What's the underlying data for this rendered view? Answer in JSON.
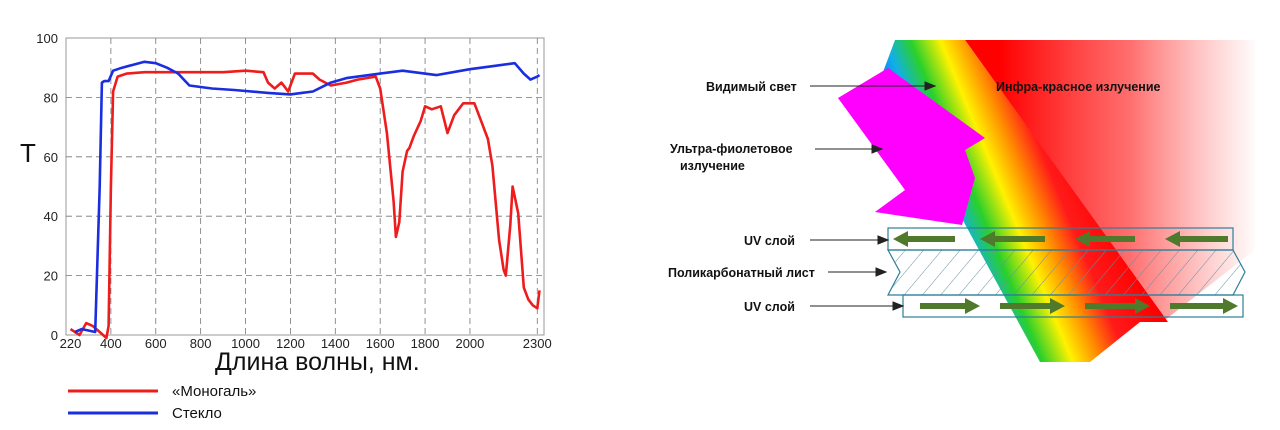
{
  "chart_data": {
    "type": "line",
    "ylabel": "T",
    "xlabel": "Длина волны, нм.",
    "xlim": [
      200,
      2330
    ],
    "ylim": [
      0,
      100
    ],
    "x_ticks": [
      220,
      400,
      600,
      800,
      1000,
      1200,
      1400,
      1600,
      1800,
      2000,
      2300
    ],
    "y_ticks": [
      0,
      20,
      40,
      60,
      80,
      100
    ],
    "grid": true,
    "legend_placement": "bottom-left",
    "series": [
      {
        "name": "«Моногаль»",
        "color": "#ee1c1c",
        "points": [
          [
            220,
            2
          ],
          [
            260,
            0
          ],
          [
            290,
            4
          ],
          [
            320,
            3
          ],
          [
            350,
            1
          ],
          [
            380,
            -1
          ],
          [
            390,
            3
          ],
          [
            400,
            50
          ],
          [
            410,
            82
          ],
          [
            430,
            87
          ],
          [
            470,
            88
          ],
          [
            550,
            88.5
          ],
          [
            700,
            88.5
          ],
          [
            900,
            88.5
          ],
          [
            1000,
            89
          ],
          [
            1080,
            88.5
          ],
          [
            1100,
            85
          ],
          [
            1130,
            83
          ],
          [
            1160,
            85
          ],
          [
            1190,
            82
          ],
          [
            1220,
            88
          ],
          [
            1300,
            88
          ],
          [
            1330,
            86
          ],
          [
            1380,
            84
          ],
          [
            1450,
            85
          ],
          [
            1500,
            86
          ],
          [
            1580,
            87
          ],
          [
            1600,
            83
          ],
          [
            1630,
            68
          ],
          [
            1660,
            45
          ],
          [
            1670,
            33
          ],
          [
            1685,
            38
          ],
          [
            1700,
            55
          ],
          [
            1720,
            62
          ],
          [
            1730,
            63
          ],
          [
            1750,
            67
          ],
          [
            1780,
            72
          ],
          [
            1800,
            77
          ],
          [
            1830,
            76
          ],
          [
            1870,
            77
          ],
          [
            1880,
            74
          ],
          [
            1900,
            68
          ],
          [
            1930,
            74
          ],
          [
            1970,
            78
          ],
          [
            2020,
            78
          ],
          [
            2050,
            72
          ],
          [
            2080,
            66
          ],
          [
            2100,
            57
          ],
          [
            2130,
            32
          ],
          [
            2150,
            22
          ],
          [
            2160,
            20
          ],
          [
            2180,
            37
          ],
          [
            2190,
            50
          ],
          [
            2215,
            41
          ],
          [
            2240,
            16
          ],
          [
            2260,
            12
          ],
          [
            2280,
            10
          ],
          [
            2300,
            9
          ],
          [
            2310,
            15
          ]
        ]
      },
      {
        "name": "Стекло",
        "color": "#1a2ee0",
        "points": [
          [
            240,
            1
          ],
          [
            270,
            2
          ],
          [
            300,
            1.5
          ],
          [
            330,
            1
          ],
          [
            350,
            50
          ],
          [
            360,
            85
          ],
          [
            370,
            85.5
          ],
          [
            390,
            85.5
          ],
          [
            410,
            89
          ],
          [
            450,
            90
          ],
          [
            500,
            91
          ],
          [
            550,
            92
          ],
          [
            600,
            91.5
          ],
          [
            650,
            90
          ],
          [
            700,
            88
          ],
          [
            750,
            84
          ],
          [
            850,
            83
          ],
          [
            950,
            82.5
          ],
          [
            1100,
            81.5
          ],
          [
            1200,
            81
          ],
          [
            1250,
            81.5
          ],
          [
            1300,
            82
          ],
          [
            1380,
            85
          ],
          [
            1450,
            86.5
          ],
          [
            1600,
            88
          ],
          [
            1700,
            89
          ],
          [
            1850,
            87.5
          ],
          [
            2000,
            89.5
          ],
          [
            2100,
            90.5
          ],
          [
            2200,
            91.5
          ],
          [
            2240,
            88
          ],
          [
            2270,
            86
          ],
          [
            2300,
            87
          ],
          [
            2310,
            87.5
          ]
        ]
      }
    ]
  },
  "diagram": {
    "labels": {
      "visible_light": "Видимый свет",
      "infrared": "Инфра-красное излучение",
      "uv_line1": "Ультра-фиолетовое",
      "uv_line2": "излучение",
      "uv_layer_top": "UV слой",
      "polycarbonate": "Поликарбонатный лист",
      "uv_layer_bottom": "UV слой"
    },
    "colors": {
      "uv_arrow": "#ff00ff",
      "layer_stroke": "#2b7f9a",
      "green_arrow": "#4f7a2b"
    }
  }
}
